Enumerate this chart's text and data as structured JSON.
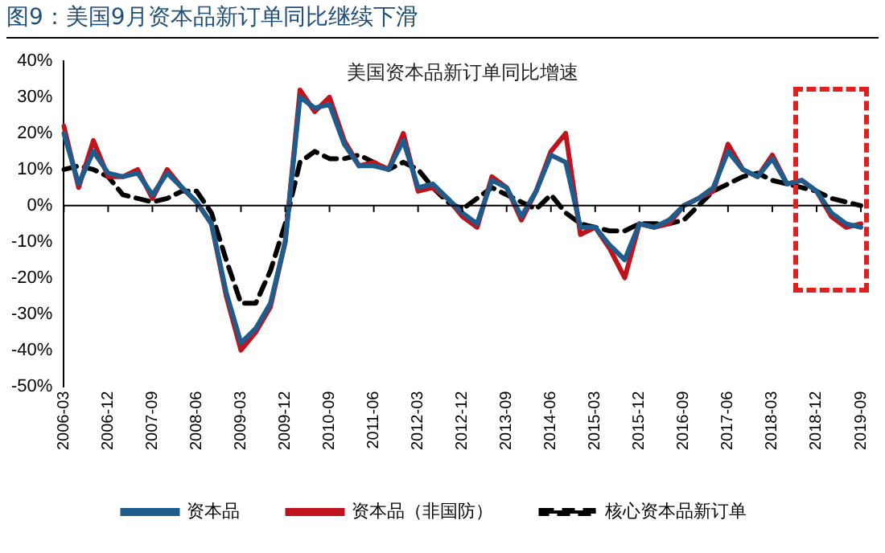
{
  "chart_data": {
    "type": "line",
    "title": "图9：美国9月资本品新订单同比继续下滑",
    "subtitle": "美国资本品新订单同比增速",
    "categories": [
      "2006-03",
      null,
      null,
      "2006-12",
      null,
      null,
      "2007-09",
      null,
      null,
      "2008-06",
      null,
      null,
      "2009-03",
      null,
      null,
      "2009-12",
      null,
      null,
      "2010-09",
      null,
      null,
      "2011-06",
      null,
      null,
      "2012-03",
      null,
      null,
      "2012-12",
      null,
      null,
      "2013-09",
      null,
      null,
      "2014-06",
      null,
      null,
      "2015-03",
      null,
      null,
      "2015-12",
      null,
      null,
      "2016-09",
      null,
      null,
      "2017-06",
      null,
      null,
      "2018-03",
      null,
      null,
      "2018-12",
      null,
      null,
      "2019-09"
    ],
    "series": [
      {
        "name": "资本品",
        "color": "#1f5c8b",
        "values": [
          20,
          6,
          15,
          9,
          8,
          9,
          3,
          9,
          5,
          1,
          -5,
          -24,
          -38,
          -34,
          -27,
          -10,
          30,
          27,
          28,
          17,
          11,
          11,
          10,
          18,
          5,
          6,
          2,
          -2,
          -5,
          7,
          5,
          -3,
          4,
          14,
          12,
          -6,
          -6,
          -11,
          -15,
          -5,
          -6,
          -4,
          0,
          2,
          5,
          15,
          10,
          8,
          13,
          6,
          7,
          4,
          -2,
          -5,
          -6
        ]
      },
      {
        "name": "资本品（非国防）",
        "color": "#c0141c",
        "values": [
          22,
          5,
          18,
          8,
          8,
          10,
          2,
          10,
          5,
          1,
          -5,
          -25,
          -40,
          -35,
          -28,
          -10,
          32,
          26,
          30,
          18,
          11,
          12,
          10,
          20,
          4,
          5,
          2,
          -3,
          -6,
          8,
          5,
          -4,
          4,
          15,
          20,
          -8,
          -6,
          -12,
          -20,
          -5,
          -6,
          -5,
          0,
          2,
          4,
          17,
          10,
          8,
          14,
          6,
          7,
          4,
          -3,
          -6,
          -5
        ]
      },
      {
        "name": "核心资本品新订单",
        "color": "#000000",
        "type": "line",
        "line_style": "dashed",
        "values": [
          10,
          11,
          10,
          8,
          3,
          2,
          1,
          2,
          4,
          4,
          -2,
          -15,
          -27,
          -27,
          -18,
          -5,
          12,
          15,
          13,
          13,
          14,
          12,
          10,
          12,
          10,
          5,
          1,
          -1,
          2,
          5,
          3,
          1,
          -1,
          3,
          -2,
          -5,
          -6,
          -7,
          -7,
          -5,
          -5,
          -5,
          -4,
          0,
          4,
          6,
          8,
          9,
          7,
          6,
          5,
          4,
          2,
          1,
          0
        ]
      }
    ],
    "ylim": [
      -50,
      40
    ],
    "yticks": [
      {
        "value": -50,
        "label": "-50%"
      },
      {
        "value": -40,
        "label": "-40%"
      },
      {
        "value": -30,
        "label": "-30%"
      },
      {
        "value": -20,
        "label": "-20%"
      },
      {
        "value": -10,
        "label": "-10%"
      },
      {
        "value": 0,
        "label": "0%"
      },
      {
        "value": 10,
        "label": "10%"
      },
      {
        "value": 20,
        "label": "20%"
      },
      {
        "value": 30,
        "label": "30%"
      },
      {
        "value": 40,
        "label": "40%"
      }
    ],
    "legend": "bottom",
    "marker": "none",
    "line_style": "solid"
  }
}
